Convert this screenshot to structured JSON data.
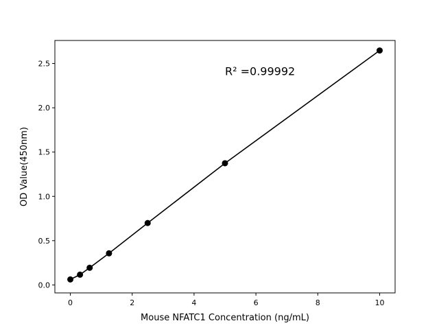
{
  "chart_data": {
    "type": "line",
    "title": "",
    "xlabel": "Mouse NFATC1 Concentration (ng/mL)",
    "ylabel": "OD Value(450nm)",
    "xlim": [
      -0.5,
      10.5
    ],
    "ylim": [
      -0.09,
      2.76
    ],
    "xticks": [
      0,
      2,
      4,
      6,
      8,
      10
    ],
    "xtick_labels": [
      "0",
      "2",
      "4",
      "6",
      "8",
      "10"
    ],
    "yticks": [
      0.0,
      0.5,
      1.0,
      1.5,
      2.0,
      2.5
    ],
    "ytick_labels": [
      "0.0",
      "0.5",
      "1.0",
      "1.5",
      "2.0",
      "2.5"
    ],
    "grid": false,
    "series": [
      {
        "x": [
          0,
          0.3125,
          0.625,
          1.25,
          2.5,
          5,
          10
        ],
        "y": [
          0.062,
          0.116,
          0.194,
          0.357,
          0.699,
          1.374,
          2.647
        ],
        "color": "#000000",
        "marker": "circle"
      }
    ],
    "annotations": [
      {
        "text": "R² =0.99992",
        "x": 5,
        "y": 2.37
      }
    ]
  }
}
